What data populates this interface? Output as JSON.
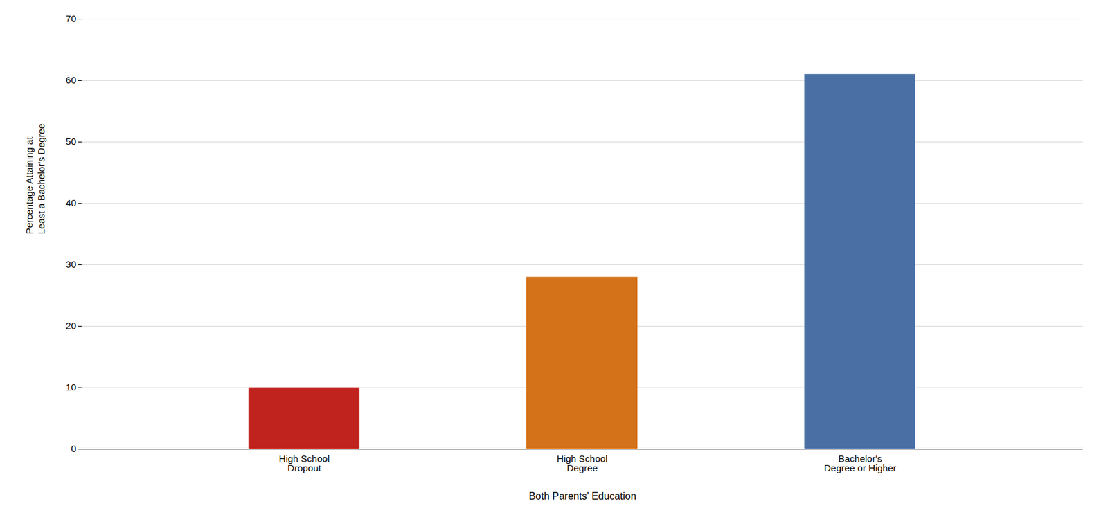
{
  "chart_data": {
    "type": "bar",
    "categories": [
      "High School\nDropout",
      "High School\nDegree",
      "Bachelor's\nDegree or Higher"
    ],
    "values": [
      10,
      28,
      61
    ],
    "colors": [
      "#c0231e",
      "#d4721a",
      "#4a6fa5"
    ],
    "xlabel": "Both Parents' Education",
    "ylabel": "Percentage Attaining at\nLeast a Bachelor's Degree",
    "ylim": [
      0,
      70
    ],
    "yticks": [
      0,
      10,
      20,
      30,
      40,
      50,
      60,
      70
    ],
    "grid": true
  }
}
